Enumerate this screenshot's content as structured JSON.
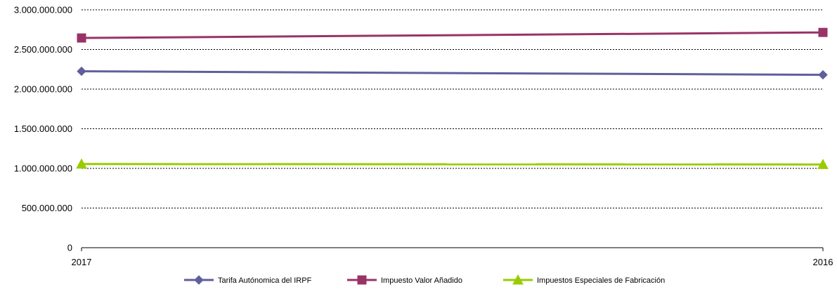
{
  "chart_data": {
    "type": "line",
    "title": "",
    "xlabel": "",
    "ylabel": "",
    "categories": [
      "2017",
      "2016"
    ],
    "ylim": [
      0,
      3000000000
    ],
    "yticks": [
      0,
      500000000,
      1000000000,
      1500000000,
      2000000000,
      2500000000,
      3000000000
    ],
    "ytick_labels": [
      "0",
      "500.000.000",
      "1.000.000.000",
      "1.500.000.000",
      "2.000.000.000",
      "2.500.000.000",
      "3.000.000.000"
    ],
    "grid": "horizontal dotted",
    "legend_position": "bottom",
    "series": [
      {
        "name": "Tarifa Autónomica del IRPF",
        "values": [
          2225000000,
          2180000000
        ],
        "color": "#5f5f9d",
        "marker": "diamond"
      },
      {
        "name": "Impuesto Valor Añadido",
        "values": [
          2645000000,
          2715000000
        ],
        "color": "#993366",
        "marker": "square"
      },
      {
        "name": "Impuestos Especiales de Fabricación",
        "values": [
          1055000000,
          1050000000
        ],
        "color": "#99cc00",
        "marker": "triangle"
      }
    ]
  }
}
